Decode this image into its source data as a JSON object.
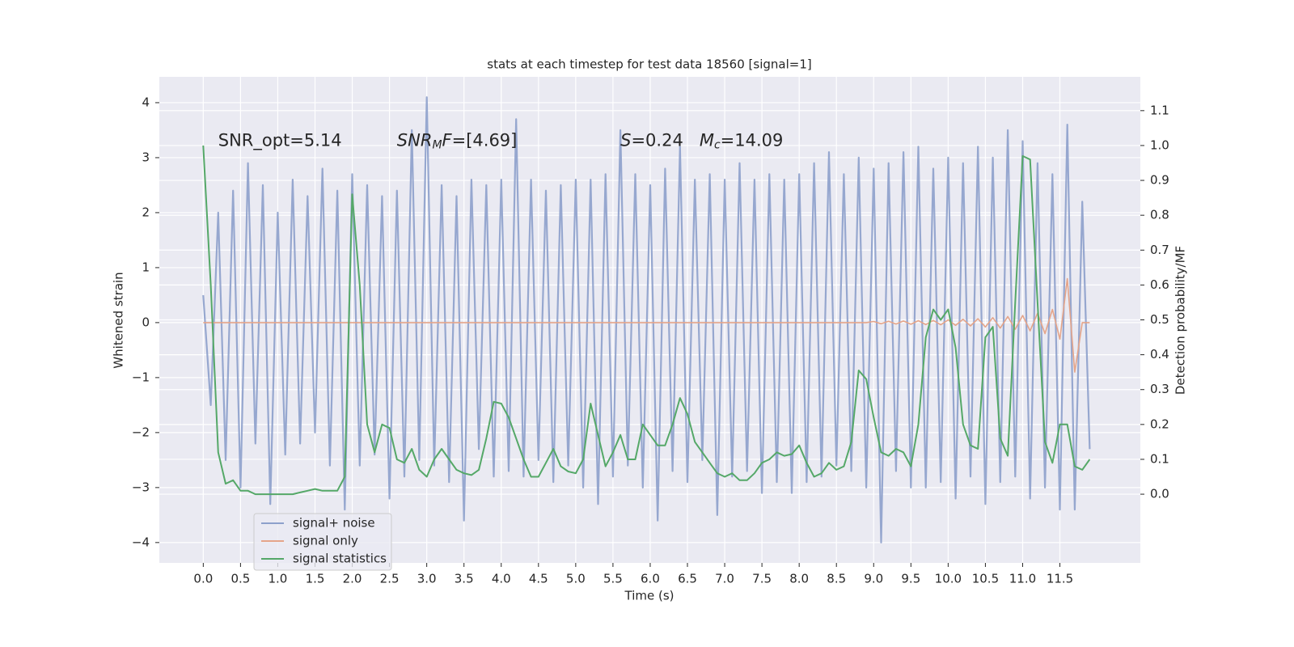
{
  "chart_data": {
    "type": "line",
    "title": "stats at each timestep for test data 18560 [signal=1]",
    "xlabel": "Time (s)",
    "ylabel": "Whitened strain",
    "y2label": "Detection probability/MF",
    "grid": true,
    "legend": "lower left",
    "annotations": [
      {
        "x": 0.2,
        "y": 3.3,
        "parts": [
          {
            "text": "SNR_opt=5.14",
            "style": "n"
          }
        ]
      },
      {
        "x": 2.6,
        "y": 3.3,
        "parts": [
          {
            "text": "SNR",
            "style": "i"
          },
          {
            "text": "M",
            "style": "isub"
          },
          {
            "text": "F",
            "style": "i"
          },
          {
            "text": "=[4.69]",
            "style": "n"
          }
        ]
      },
      {
        "x": 5.6,
        "y": 3.3,
        "parts": [
          {
            "text": "S",
            "style": "i"
          },
          {
            "text": "=0.24   ",
            "style": "n"
          },
          {
            "text": "M",
            "style": "i"
          },
          {
            "text": "c",
            "style": "isub"
          },
          {
            "text": "=14.09",
            "style": "n"
          }
        ]
      }
    ],
    "xlim": [
      -0.59,
      12.58
    ],
    "ylim": [
      -4.37,
      4.47
    ],
    "y2lim": [
      -0.197,
      1.197
    ],
    "xticks": [
      {
        "value": 0,
        "label": "0.0"
      },
      {
        "value": 0.5,
        "label": "0.5"
      },
      {
        "value": 1,
        "label": "1.0"
      },
      {
        "value": 1.5,
        "label": "1.5"
      },
      {
        "value": 2,
        "label": "2.0"
      },
      {
        "value": 2.5,
        "label": "2.5"
      },
      {
        "value": 3,
        "label": "3.0"
      },
      {
        "value": 3.5,
        "label": "3.5"
      },
      {
        "value": 4,
        "label": "4.0"
      },
      {
        "value": 4.5,
        "label": "4.5"
      },
      {
        "value": 5,
        "label": "5.0"
      },
      {
        "value": 5.5,
        "label": "5.5"
      },
      {
        "value": 6,
        "label": "6.0"
      },
      {
        "value": 6.5,
        "label": "6.5"
      },
      {
        "value": 7,
        "label": "7.0"
      },
      {
        "value": 7.5,
        "label": "7.5"
      },
      {
        "value": 8,
        "label": "8.0"
      },
      {
        "value": 8.5,
        "label": "8.5"
      },
      {
        "value": 9,
        "label": "9.0"
      },
      {
        "value": 9.5,
        "label": "9.5"
      },
      {
        "value": 10,
        "label": "10.0"
      },
      {
        "value": 10.5,
        "label": "10.5"
      },
      {
        "value": 11,
        "label": "11.0"
      },
      {
        "value": 11.5,
        "label": "11.5"
      }
    ],
    "yticks": [
      {
        "value": -4,
        "label": "−4"
      },
      {
        "value": -3,
        "label": "−3"
      },
      {
        "value": -2,
        "label": "−2"
      },
      {
        "value": -1,
        "label": "−1"
      },
      0,
      1,
      2,
      3,
      4
    ],
    "y2ticks": [
      {
        "value": 0,
        "label": "0.0"
      },
      {
        "value": 0.1,
        "label": "0.1"
      },
      {
        "value": 0.2,
        "label": "0.2"
      },
      {
        "value": 0.3,
        "label": "0.3"
      },
      {
        "value": 0.4,
        "label": "0.4"
      },
      {
        "value": 0.5,
        "label": "0.5"
      },
      {
        "value": 0.6,
        "label": "0.6"
      },
      {
        "value": 0.7,
        "label": "0.7"
      },
      {
        "value": 0.8,
        "label": "0.8"
      },
      {
        "value": 0.9,
        "label": "0.9"
      },
      {
        "value": 1,
        "label": "1.0"
      },
      {
        "value": 1.1,
        "label": "1.1"
      }
    ],
    "x": [
      0,
      0.1,
      0.2,
      0.3,
      0.4,
      0.5,
      0.6,
      0.7,
      0.8,
      0.9,
      1,
      1.1,
      1.2,
      1.3,
      1.4,
      1.5,
      1.6,
      1.7,
      1.8,
      1.9,
      2,
      2.1,
      2.2,
      2.3,
      2.4,
      2.5,
      2.6,
      2.7,
      2.8,
      2.9,
      3,
      3.1,
      3.2,
      3.3,
      3.4,
      3.5,
      3.6,
      3.7,
      3.8,
      3.9,
      4,
      4.1,
      4.2,
      4.3,
      4.4,
      4.5,
      4.6,
      4.7,
      4.8,
      4.9,
      5,
      5.1,
      5.2,
      5.3,
      5.4,
      5.5,
      5.6,
      5.7,
      5.8,
      5.9,
      6,
      6.1,
      6.2,
      6.3,
      6.4,
      6.5,
      6.6,
      6.7,
      6.8,
      6.9,
      7,
      7.1,
      7.2,
      7.3,
      7.4,
      7.5,
      7.6,
      7.7,
      7.8,
      7.9,
      8,
      8.1,
      8.2,
      8.3,
      8.4,
      8.5,
      8.6,
      8.7,
      8.8,
      8.9,
      9,
      9.1,
      9.2,
      9.3,
      9.4,
      9.5,
      9.6,
      9.7,
      9.8,
      9.9,
      10,
      10.1,
      10.2,
      10.3,
      10.4,
      10.5,
      10.6,
      10.7,
      10.8,
      10.9,
      11,
      11.1,
      11.2,
      11.3,
      11.4,
      11.5,
      11.6,
      11.7,
      11.8,
      11.9
    ],
    "series": [
      {
        "name": "signal+ noise",
        "color": "#8da0cb",
        "values": [
          0.5,
          -1.5,
          2.0,
          -2.5,
          2.4,
          -3.0,
          2.9,
          -2.2,
          2.5,
          -3.3,
          2.0,
          -2.4,
          2.6,
          -2.2,
          2.3,
          -2.0,
          2.8,
          -2.6,
          2.4,
          -3.4,
          2.7,
          -2.6,
          2.5,
          -2.4,
          2.3,
          -3.2,
          2.4,
          -2.8,
          3.5,
          -2.5,
          4.1,
          -2.6,
          2.5,
          -2.9,
          2.3,
          -3.6,
          2.6,
          -2.3,
          2.5,
          -2.8,
          2.6,
          -2.7,
          3.7,
          -2.8,
          2.6,
          -2.5,
          2.4,
          -2.9,
          2.5,
          -2.6,
          2.6,
          -3.0,
          2.6,
          -3.3,
          2.7,
          -2.8,
          3.5,
          -2.6,
          2.7,
          -3.0,
          2.5,
          -3.6,
          2.8,
          -2.7,
          3.2,
          -2.9,
          2.6,
          -2.5,
          2.7,
          -3.5,
          2.6,
          -2.8,
          2.9,
          -2.7,
          2.6,
          -3.1,
          2.7,
          -2.9,
          2.6,
          -3.1,
          2.7,
          -2.9,
          2.9,
          -2.8,
          3.1,
          -2.6,
          2.7,
          -2.7,
          3.0,
          -3.0,
          2.8,
          -4.0,
          2.9,
          -2.7,
          3.1,
          -3.0,
          3.2,
          -3.0,
          2.8,
          -2.9,
          3.0,
          -3.2,
          2.9,
          -2.8,
          3.2,
          -3.3,
          3.0,
          -2.9,
          3.5,
          -2.8,
          3.3,
          -3.2,
          2.9,
          -3.0,
          2.7,
          -3.4,
          3.6,
          -3.4,
          2.2,
          -2.3
        ]
      },
      {
        "name": "signal only",
        "color": "#e5a58a",
        "values": [
          0,
          0,
          0,
          0,
          0,
          0,
          0,
          0,
          0,
          0,
          0,
          0,
          0,
          0,
          0,
          0,
          0,
          0,
          0,
          0,
          0,
          0,
          0,
          0,
          0,
          0,
          0,
          0,
          0,
          0,
          0,
          0,
          0,
          0,
          0,
          0,
          0,
          0,
          0,
          0,
          0,
          0,
          0,
          0,
          0,
          0,
          0,
          0,
          0,
          0,
          0,
          0,
          0,
          0,
          0,
          0,
          0,
          0,
          0,
          0,
          0,
          0,
          0,
          0,
          0,
          0,
          0,
          0,
          0,
          0,
          0,
          0,
          0,
          0,
          0,
          0,
          0,
          0,
          0,
          0,
          0,
          0,
          0,
          0,
          0,
          0,
          0,
          0,
          0,
          0,
          0.02,
          -0.02,
          0.025,
          -0.025,
          0.03,
          -0.03,
          0.035,
          -0.035,
          0.04,
          -0.04,
          0.05,
          -0.05,
          0.06,
          -0.06,
          0.07,
          -0.08,
          0.09,
          -0.1,
          0.11,
          -0.12,
          0.13,
          -0.15,
          0.17,
          -0.2,
          0.24,
          -0.3,
          0.8,
          -0.9,
          0,
          0
        ]
      },
      {
        "name": "signal statistics",
        "color": "#55a868",
        "axis": "y2",
        "values": [
          1.0,
          0.6,
          0.12,
          0.03,
          0.04,
          0.01,
          0.01,
          0.0,
          0.0,
          0.0,
          0.0,
          0.0,
          0.0,
          0.005,
          0.01,
          0.015,
          0.01,
          0.01,
          0.01,
          0.05,
          0.86,
          0.6,
          0.2,
          0.12,
          0.2,
          0.19,
          0.1,
          0.09,
          0.13,
          0.07,
          0.05,
          0.1,
          0.13,
          0.1,
          0.07,
          0.06,
          0.055,
          0.07,
          0.16,
          0.265,
          0.26,
          0.22,
          0.16,
          0.1,
          0.05,
          0.05,
          0.09,
          0.13,
          0.08,
          0.065,
          0.06,
          0.1,
          0.26,
          0.17,
          0.08,
          0.12,
          0.17,
          0.1,
          0.1,
          0.2,
          0.17,
          0.14,
          0.14,
          0.2,
          0.276,
          0.23,
          0.15,
          0.12,
          0.09,
          0.06,
          0.05,
          0.06,
          0.04,
          0.04,
          0.06,
          0.09,
          0.1,
          0.12,
          0.11,
          0.115,
          0.14,
          0.09,
          0.05,
          0.06,
          0.09,
          0.07,
          0.08,
          0.15,
          0.355,
          0.33,
          0.22,
          0.12,
          0.11,
          0.13,
          0.12,
          0.08,
          0.2,
          0.45,
          0.53,
          0.5,
          0.53,
          0.42,
          0.2,
          0.14,
          0.13,
          0.45,
          0.48,
          0.16,
          0.11,
          0.55,
          0.97,
          0.96,
          0.55,
          0.15,
          0.09,
          0.2,
          0.2,
          0.08,
          0.07,
          0.1
        ]
      }
    ]
  }
}
